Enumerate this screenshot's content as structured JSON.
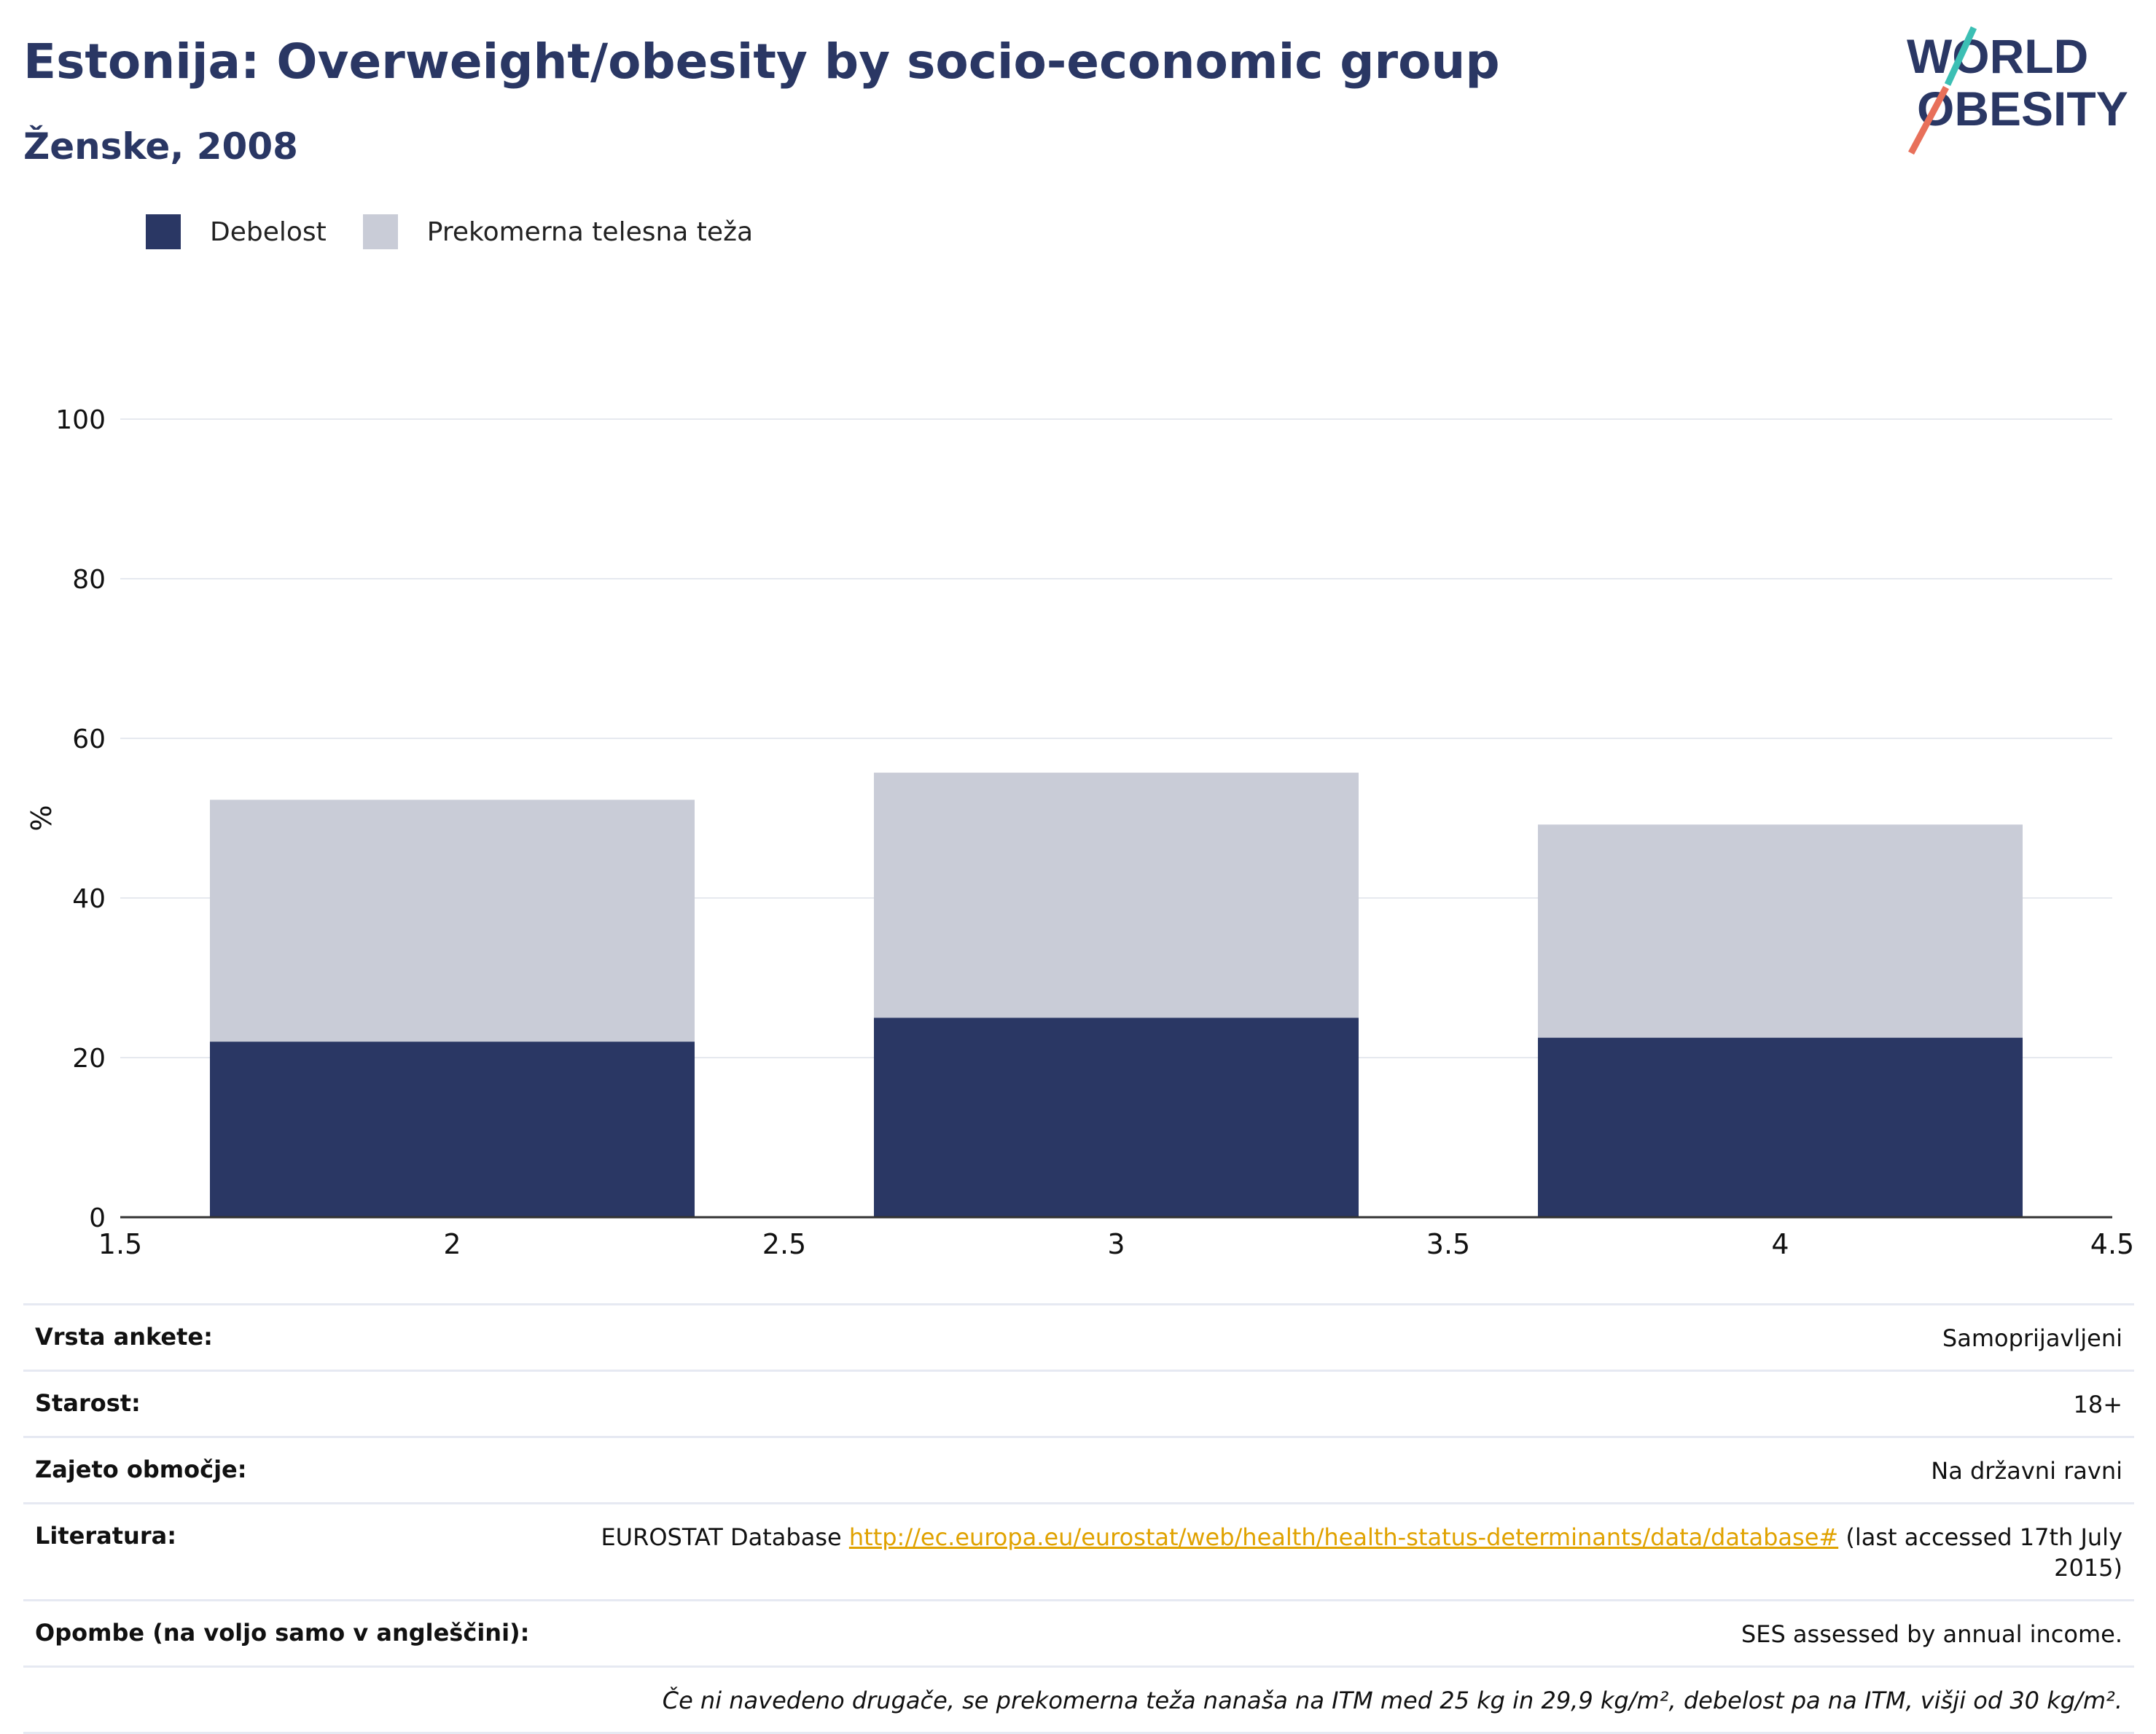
{
  "header": {
    "title": "Estonija: Overweight/obesity by socio-economic group",
    "subtitle": "Ženske, 2008"
  },
  "logo": {
    "line1": "WORLD",
    "line2": "OBESITY"
  },
  "legend": [
    {
      "label": "Debelost",
      "color": "#2a3764"
    },
    {
      "label": "Prekomerna telesna teža",
      "color": "#c9ccd7"
    }
  ],
  "chart_data": {
    "type": "bar",
    "stacked": true,
    "x": [
      2,
      3,
      4
    ],
    "series": [
      {
        "name": "Debelost",
        "values": [
          22.0,
          25.0,
          22.5
        ],
        "color": "#2a3764"
      },
      {
        "name": "Prekomerna telesna teža",
        "values": [
          30.3,
          30.7,
          26.7
        ],
        "color": "#c9ccd7"
      }
    ],
    "xlim": [
      1.5,
      4.5
    ],
    "xticks": [
      "1.5",
      "2",
      "2.5",
      "3",
      "3.5",
      "4",
      "4.5"
    ],
    "ylim": [
      0,
      100
    ],
    "yticks": [
      "0",
      "20",
      "40",
      "60",
      "80",
      "100"
    ],
    "ylabel": "%",
    "grid": true,
    "legend_position": "top-left"
  },
  "info": {
    "survey_type": {
      "label": "Vrsta ankete:",
      "value": "Samoprijavljeni"
    },
    "age": {
      "label": "Starost:",
      "value": "18+"
    },
    "area": {
      "label": "Zajeto območje:",
      "value": "Na državni ravni"
    },
    "literature": {
      "label": "Literatura:",
      "prefix": "EUROSTAT Database ",
      "link": "http://ec.europa.eu/eurostat/web/health/health-status-determinants/data/database#",
      "suffix": " (last accessed 17th July 2015)"
    },
    "notes": {
      "label": "Opombe (na voljo samo v angleščini):",
      "value": "SES assessed by annual income."
    },
    "footnote": "Če ni navedeno drugače, se prekomerna teža nanaša na ITM med 25 kg in 29,9 kg/m², debelost pa na ITM, višji od 30 kg/m²."
  }
}
